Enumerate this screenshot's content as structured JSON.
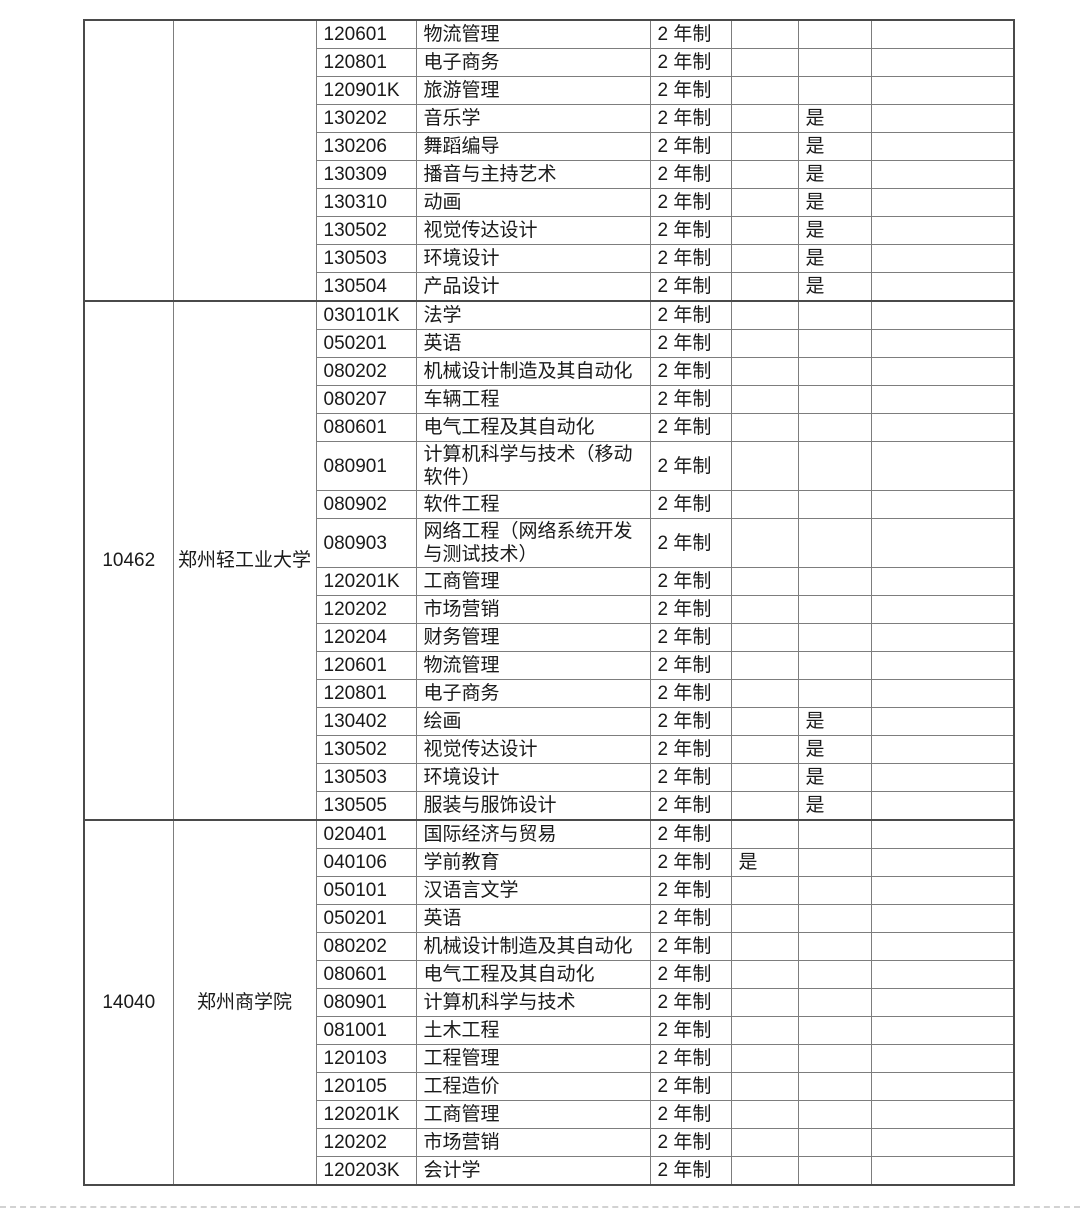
{
  "colors": {
    "grid_line": "#7d7d7d",
    "frame_line": "#4a4a4a",
    "text": "#1a1a1a",
    "background": "#ffffff"
  },
  "table": {
    "sections": [
      {
        "school_code": "",
        "school_name": "",
        "majors": [
          {
            "code": "120601",
            "name": "物流管理",
            "duration": "2 年制",
            "flags": [
              "",
              "",
              ""
            ]
          },
          {
            "code": "120801",
            "name": "电子商务",
            "duration": "2 年制",
            "flags": [
              "",
              "",
              ""
            ]
          },
          {
            "code": "120901K",
            "name": "旅游管理",
            "duration": "2 年制",
            "flags": [
              "",
              "",
              ""
            ]
          },
          {
            "code": "130202",
            "name": "音乐学",
            "duration": "2 年制",
            "flags": [
              "",
              "是",
              ""
            ]
          },
          {
            "code": "130206",
            "name": "舞蹈编导",
            "duration": "2 年制",
            "flags": [
              "",
              "是",
              ""
            ]
          },
          {
            "code": "130309",
            "name": "播音与主持艺术",
            "duration": "2 年制",
            "flags": [
              "",
              "是",
              ""
            ]
          },
          {
            "code": "130310",
            "name": "动画",
            "duration": "2 年制",
            "flags": [
              "",
              "是",
              ""
            ]
          },
          {
            "code": "130502",
            "name": "视觉传达设计",
            "duration": "2 年制",
            "flags": [
              "",
              "是",
              ""
            ]
          },
          {
            "code": "130503",
            "name": "环境设计",
            "duration": "2 年制",
            "flags": [
              "",
              "是",
              ""
            ]
          },
          {
            "code": "130504",
            "name": "产品设计",
            "duration": "2 年制",
            "flags": [
              "",
              "是",
              ""
            ]
          }
        ]
      },
      {
        "school_code": "10462",
        "school_name": "郑州轻工业大学",
        "majors": [
          {
            "code": "030101K",
            "name": "法学",
            "duration": "2 年制",
            "flags": [
              "",
              "",
              ""
            ]
          },
          {
            "code": "050201",
            "name": "英语",
            "duration": "2 年制",
            "flags": [
              "",
              "",
              ""
            ]
          },
          {
            "code": "080202",
            "name": "机械设计制造及其自动化",
            "duration": "2 年制",
            "flags": [
              "",
              "",
              ""
            ]
          },
          {
            "code": "080207",
            "name": "车辆工程",
            "duration": "2 年制",
            "flags": [
              "",
              "",
              ""
            ]
          },
          {
            "code": "080601",
            "name": "电气工程及其自动化",
            "duration": "2 年制",
            "flags": [
              "",
              "",
              ""
            ]
          },
          {
            "code": "080901",
            "name": "计算机科学与技术（移动软件）",
            "duration": "2 年制",
            "flags": [
              "",
              "",
              ""
            ],
            "tall": true
          },
          {
            "code": "080902",
            "name": "软件工程",
            "duration": "2 年制",
            "flags": [
              "",
              "",
              ""
            ]
          },
          {
            "code": "080903",
            "name": "网络工程（网络系统开发与测试技术）",
            "duration": "2 年制",
            "flags": [
              "",
              "",
              ""
            ],
            "tall": true
          },
          {
            "code": "120201K",
            "name": "工商管理",
            "duration": "2 年制",
            "flags": [
              "",
              "",
              ""
            ]
          },
          {
            "code": "120202",
            "name": "市场营销",
            "duration": "2 年制",
            "flags": [
              "",
              "",
              ""
            ]
          },
          {
            "code": "120204",
            "name": "财务管理",
            "duration": "2 年制",
            "flags": [
              "",
              "",
              ""
            ]
          },
          {
            "code": "120601",
            "name": "物流管理",
            "duration": "2 年制",
            "flags": [
              "",
              "",
              ""
            ]
          },
          {
            "code": "120801",
            "name": "电子商务",
            "duration": "2 年制",
            "flags": [
              "",
              "",
              ""
            ]
          },
          {
            "code": "130402",
            "name": "绘画",
            "duration": "2 年制",
            "flags": [
              "",
              "是",
              ""
            ]
          },
          {
            "code": "130502",
            "name": "视觉传达设计",
            "duration": "2 年制",
            "flags": [
              "",
              "是",
              ""
            ]
          },
          {
            "code": "130503",
            "name": "环境设计",
            "duration": "2 年制",
            "flags": [
              "",
              "是",
              ""
            ]
          },
          {
            "code": "130505",
            "name": "服装与服饰设计",
            "duration": "2 年制",
            "flags": [
              "",
              "是",
              ""
            ]
          }
        ]
      },
      {
        "school_code": "14040",
        "school_name": "郑州商学院",
        "majors": [
          {
            "code": "020401",
            "name": "国际经济与贸易",
            "duration": "2 年制",
            "flags": [
              "",
              "",
              ""
            ]
          },
          {
            "code": "040106",
            "name": "学前教育",
            "duration": "2 年制",
            "flags": [
              "是",
              "",
              ""
            ]
          },
          {
            "code": "050101",
            "name": "汉语言文学",
            "duration": "2 年制",
            "flags": [
              "",
              "",
              ""
            ]
          },
          {
            "code": "050201",
            "name": "英语",
            "duration": "2 年制",
            "flags": [
              "",
              "",
              ""
            ]
          },
          {
            "code": "080202",
            "name": "机械设计制造及其自动化",
            "duration": "2 年制",
            "flags": [
              "",
              "",
              ""
            ]
          },
          {
            "code": "080601",
            "name": "电气工程及其自动化",
            "duration": "2 年制",
            "flags": [
              "",
              "",
              ""
            ]
          },
          {
            "code": "080901",
            "name": "计算机科学与技术",
            "duration": "2 年制",
            "flags": [
              "",
              "",
              ""
            ]
          },
          {
            "code": "081001",
            "name": "土木工程",
            "duration": "2 年制",
            "flags": [
              "",
              "",
              ""
            ]
          },
          {
            "code": "120103",
            "name": "工程管理",
            "duration": "2 年制",
            "flags": [
              "",
              "",
              ""
            ]
          },
          {
            "code": "120105",
            "name": "工程造价",
            "duration": "2 年制",
            "flags": [
              "",
              "",
              ""
            ]
          },
          {
            "code": "120201K",
            "name": "工商管理",
            "duration": "2 年制",
            "flags": [
              "",
              "",
              ""
            ]
          },
          {
            "code": "120202",
            "name": "市场营销",
            "duration": "2 年制",
            "flags": [
              "",
              "",
              ""
            ]
          },
          {
            "code": "120203K",
            "name": "会计学",
            "duration": "2 年制",
            "flags": [
              "",
              "",
              ""
            ]
          }
        ]
      }
    ]
  }
}
